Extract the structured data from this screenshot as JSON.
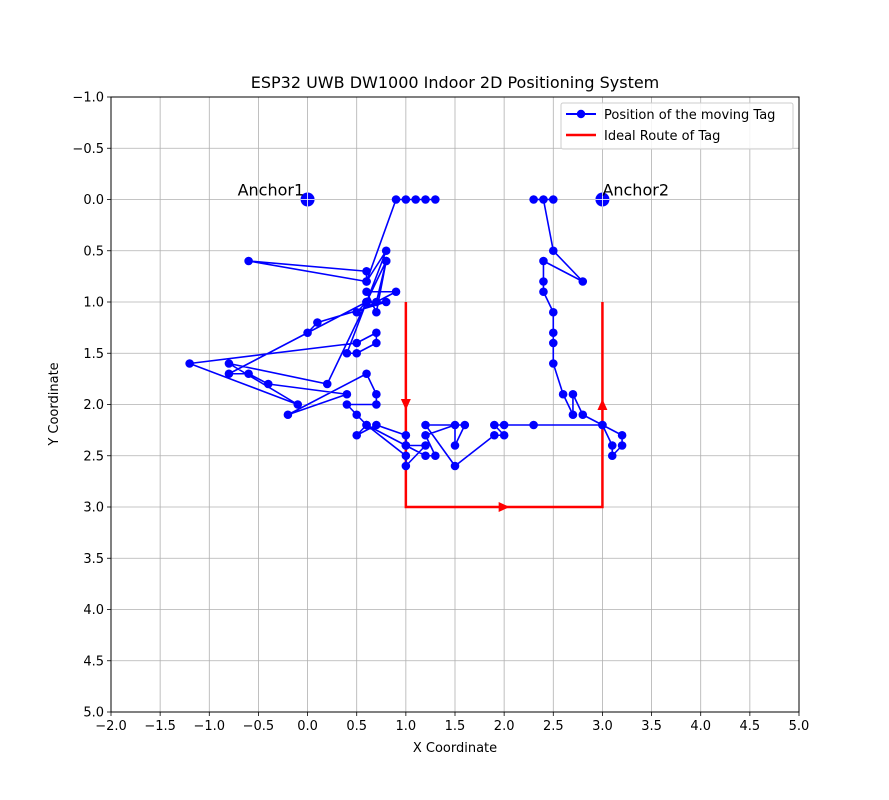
{
  "chart_data": {
    "type": "line",
    "title": "ESP32 UWB DW1000 Indoor 2D Positioning System",
    "xlabel": "X Coordinate",
    "ylabel": "Y Coordinate",
    "xlim": [
      -2.0,
      5.0
    ],
    "ylim": [
      5.0,
      -1.0
    ],
    "y_inverted": true,
    "grid": true,
    "legend_position": "top-right",
    "x_ticks": [
      "−2.0",
      "−1.5",
      "−1.0",
      "−0.5",
      "0.0",
      "0.5",
      "1.0",
      "1.5",
      "2.0",
      "2.5",
      "3.0",
      "3.5",
      "4.0",
      "4.5",
      "5.0"
    ],
    "y_ticks": [
      "−1.0",
      "−0.5",
      "0.0",
      "0.5",
      "1.0",
      "1.5",
      "2.0",
      "2.5",
      "3.0",
      "3.5",
      "4.0",
      "4.5",
      "5.0"
    ],
    "x_tick_values": [
      -2.0,
      -1.5,
      -1.0,
      -0.5,
      0.0,
      0.5,
      1.0,
      1.5,
      2.0,
      2.5,
      3.0,
      3.5,
      4.0,
      4.5,
      5.0
    ],
    "y_tick_values": [
      -1.0,
      -0.5,
      0.0,
      0.5,
      1.0,
      1.5,
      2.0,
      2.5,
      3.0,
      3.5,
      4.0,
      4.5,
      5.0
    ],
    "anchors": [
      {
        "label": "Anchor1",
        "x": 0.0,
        "y": 0.0
      },
      {
        "label": "Anchor2",
        "x": 3.0,
        "y": 0.0
      }
    ],
    "series": [
      {
        "name": "Position of the moving Tag",
        "color": "#0000ff",
        "marker": "circle",
        "points": [
          [
            1.3,
            0.0
          ],
          [
            1.2,
            0.0
          ],
          [
            1.1,
            0.0
          ],
          [
            1.0,
            0.0
          ],
          [
            0.9,
            0.0
          ],
          [
            0.6,
            0.8
          ],
          [
            0.6,
            0.7
          ],
          [
            -0.6,
            0.6
          ],
          [
            0.6,
            0.8
          ],
          [
            0.8,
            0.5
          ],
          [
            0.6,
            1.0
          ],
          [
            0.7,
            1.0
          ],
          [
            0.8,
            0.6
          ],
          [
            0.7,
            1.1
          ],
          [
            0.6,
            0.9
          ],
          [
            0.9,
            0.9
          ],
          [
            0.5,
            1.1
          ],
          [
            0.6,
            1.0
          ],
          [
            0.8,
            1.0
          ],
          [
            0.1,
            1.2
          ],
          [
            0.0,
            1.3
          ],
          [
            0.6,
            1.0
          ],
          [
            0.4,
            1.5
          ],
          [
            0.5,
            1.5
          ],
          [
            0.7,
            1.4
          ],
          [
            0.7,
            1.3
          ],
          [
            0.5,
            1.4
          ],
          [
            -1.2,
            1.6
          ],
          [
            -0.1,
            2.0
          ],
          [
            -0.8,
            1.6
          ],
          [
            0.2,
            1.8
          ],
          [
            0.8,
            0.6
          ],
          [
            0.6,
            1.0
          ],
          [
            -0.8,
            1.7
          ],
          [
            -0.6,
            1.7
          ],
          [
            -0.4,
            1.8
          ],
          [
            0.4,
            1.9
          ],
          [
            -0.2,
            2.1
          ],
          [
            0.6,
            1.7
          ],
          [
            0.7,
            1.9
          ],
          [
            0.7,
            2.0
          ],
          [
            0.4,
            2.0
          ],
          [
            0.5,
            2.1
          ],
          [
            0.6,
            2.2
          ],
          [
            0.5,
            2.3
          ],
          [
            0.7,
            2.2
          ],
          [
            1.0,
            2.3
          ],
          [
            1.0,
            2.4
          ],
          [
            0.6,
            2.2
          ],
          [
            1.0,
            2.5
          ],
          [
            1.0,
            2.6
          ],
          [
            1.2,
            2.4
          ],
          [
            1.0,
            2.4
          ],
          [
            1.2,
            2.5
          ],
          [
            1.3,
            2.5
          ],
          [
            1.2,
            2.3
          ],
          [
            1.5,
            2.2
          ],
          [
            1.5,
            2.4
          ],
          [
            1.6,
            2.2
          ],
          [
            1.2,
            2.2
          ],
          [
            1.5,
            2.6
          ],
          [
            1.9,
            2.3
          ],
          [
            2.0,
            2.3
          ],
          [
            1.9,
            2.2
          ],
          [
            2.0,
            2.2
          ],
          [
            2.3,
            2.2
          ],
          [
            3.0,
            2.2
          ],
          [
            3.1,
            2.4
          ],
          [
            3.1,
            2.5
          ],
          [
            3.2,
            2.4
          ],
          [
            3.2,
            2.3
          ],
          [
            3.0,
            2.2
          ],
          [
            2.8,
            2.1
          ],
          [
            2.7,
            1.9
          ],
          [
            2.7,
            2.1
          ],
          [
            2.6,
            1.9
          ],
          [
            2.5,
            1.6
          ],
          [
            2.5,
            1.4
          ],
          [
            2.5,
            1.3
          ],
          [
            2.5,
            1.1
          ],
          [
            2.4,
            0.9
          ],
          [
            2.4,
            0.8
          ],
          [
            2.4,
            0.6
          ],
          [
            2.8,
            0.8
          ],
          [
            2.5,
            0.5
          ],
          [
            2.4,
            0.0
          ],
          [
            2.5,
            0.0
          ],
          [
            2.3,
            0.0
          ]
        ]
      },
      {
        "name": "Ideal Route of Tag",
        "color": "#ff0000",
        "marker": "arrow",
        "points": [
          [
            1.0,
            1.0
          ],
          [
            1.0,
            3.0
          ],
          [
            3.0,
            3.0
          ],
          [
            3.0,
            1.0
          ]
        ]
      }
    ]
  }
}
